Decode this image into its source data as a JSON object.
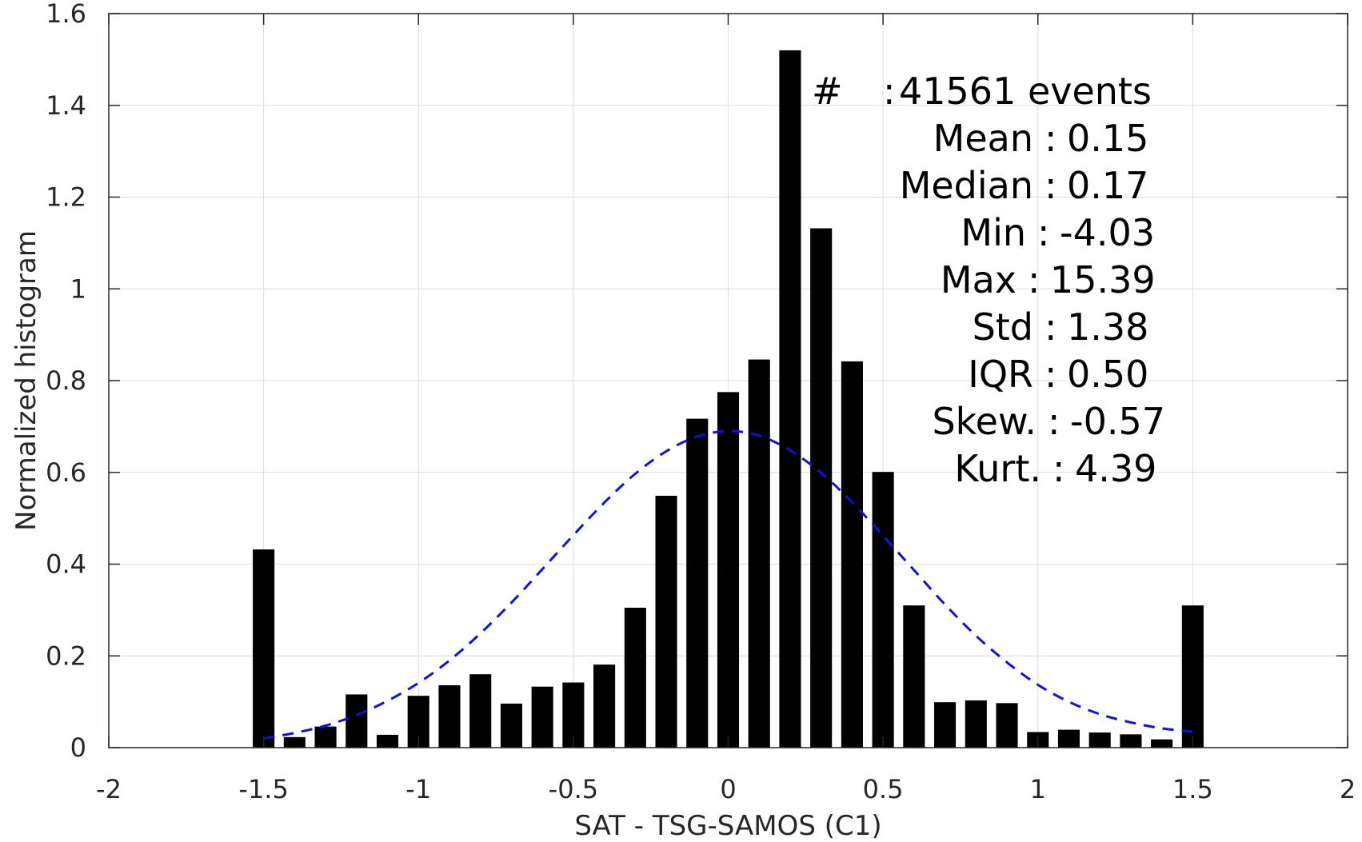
{
  "chart_data": {
    "type": "bar",
    "xlabel": "SAT - TSG-SAMOS (C1)",
    "ylabel": "Normalized histogram",
    "xlim": [
      -2,
      2
    ],
    "ylim": [
      0,
      1.6
    ],
    "grid": true,
    "x_ticks": [
      "-2",
      "-1.5",
      "-1",
      "-0.5",
      "0",
      "0.5",
      "1",
      "1.5",
      "2"
    ],
    "y_ticks": [
      "0",
      "0.2",
      "0.4",
      "0.6",
      "0.8",
      "1",
      "1.2",
      "1.4",
      "1.6"
    ],
    "bar_color": "#000000",
    "bar_width": 0.07,
    "bars": {
      "x": [
        -1.5,
        -1.4,
        -1.3,
        -1.2,
        -1.1,
        -1.0,
        -0.9,
        -0.8,
        -0.7,
        -0.6,
        -0.5,
        -0.4,
        -0.3,
        -0.2,
        -0.1,
        0.0,
        0.1,
        0.2,
        0.3,
        0.4,
        0.5,
        0.6,
        0.7,
        0.8,
        0.9,
        1.0,
        1.1,
        1.2,
        1.3,
        1.4,
        1.5
      ],
      "values": [
        0.432,
        0.023,
        0.046,
        0.116,
        0.028,
        0.113,
        0.136,
        0.16,
        0.096,
        0.133,
        0.142,
        0.181,
        0.305,
        0.549,
        0.717,
        0.775,
        0.846,
        1.52,
        1.132,
        0.842,
        0.601,
        0.31,
        0.099,
        0.103,
        0.097,
        0.034,
        0.039,
        0.033,
        0.029,
        0.018,
        0.31
      ]
    },
    "fit_curve": {
      "style": "dashed",
      "color": "#1010e0",
      "x": [
        -1.5,
        -1.4,
        -1.3,
        -1.2,
        -1.1,
        -1.0,
        -0.9,
        -0.8,
        -0.7,
        -0.6,
        -0.5,
        -0.4,
        -0.3,
        -0.2,
        -0.1,
        0.0,
        0.1,
        0.2,
        0.3,
        0.4,
        0.5,
        0.6,
        0.7,
        0.8,
        0.9,
        1.0,
        1.1,
        1.2,
        1.3,
        1.4,
        1.5
      ],
      "y": [
        0.02,
        0.032,
        0.048,
        0.071,
        0.102,
        0.141,
        0.19,
        0.249,
        0.316,
        0.389,
        0.463,
        0.534,
        0.597,
        0.646,
        0.678,
        0.69,
        0.68,
        0.648,
        0.599,
        0.535,
        0.462,
        0.387,
        0.312,
        0.244,
        0.186,
        0.137,
        0.1,
        0.073,
        0.055,
        0.042,
        0.035
      ]
    },
    "stats": [
      {
        "label": "#",
        "sep": ":",
        "value": "41561 events"
      },
      {
        "label": "Mean",
        "sep": ":",
        "value": "0.15"
      },
      {
        "label": "Median",
        "sep": ":",
        "value": "0.17"
      },
      {
        "label": "Min",
        "sep": ":",
        "value": "-4.03"
      },
      {
        "label": "Max",
        "sep": ":",
        "value": "15.39"
      },
      {
        "label": "Std",
        "sep": ":",
        "value": "1.38"
      },
      {
        "label": "IQR",
        "sep": ":",
        "value": "0.50"
      },
      {
        "label": "Skew.",
        "sep": ":",
        "value": "-0.57"
      },
      {
        "label": "Kurt.",
        "sep": ":",
        "value": "4.39"
      }
    ]
  }
}
